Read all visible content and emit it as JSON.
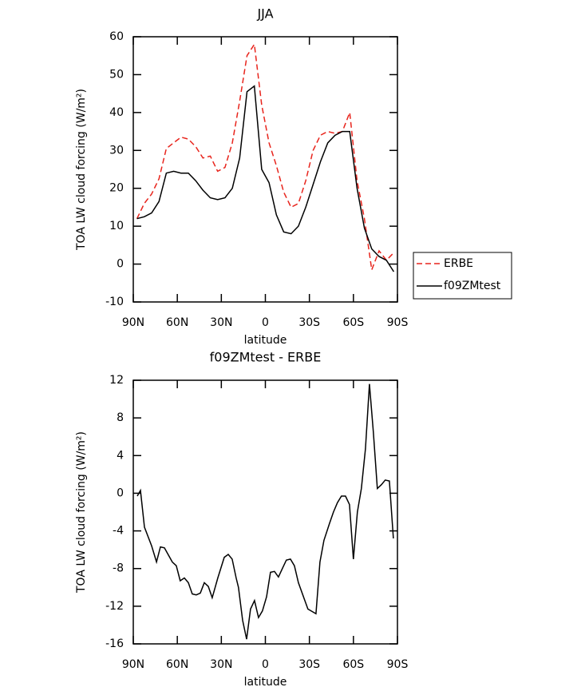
{
  "chart_data": [
    {
      "type": "line",
      "title": "JJA",
      "x_label": "latitude",
      "y_label": "TOA LW cloud forcing (W/m²)",
      "x": [
        87.5,
        82.5,
        77.5,
        72.5,
        67.5,
        62.5,
        57.5,
        52.5,
        47.5,
        42.5,
        37.5,
        32.5,
        27.5,
        22.5,
        17.5,
        12.5,
        7.5,
        2.5,
        -2.5,
        -7.5,
        -12.5,
        -17.5,
        -22.5,
        -27.5,
        -32.5,
        -37.5,
        -42.5,
        -47.5,
        -52.5,
        -57.5,
        -62.5,
        -67.5,
        -72.5,
        -77.5,
        -82.5,
        -87.5
      ],
      "series": [
        {
          "name": "ERBE",
          "color": "#e8241c",
          "linestyle": "dashed",
          "values": [
            12,
            16,
            18.5,
            22.5,
            30.5,
            32,
            33.5,
            33,
            31,
            28,
            28.5,
            24.5,
            25.5,
            32,
            43,
            55,
            58,
            42,
            32,
            26,
            19,
            15,
            16,
            22,
            30,
            34,
            35,
            34.5,
            35,
            40,
            22,
            12,
            -1.5,
            3.5,
            1,
            3
          ]
        },
        {
          "name": "f09ZMtest",
          "color": "#000000",
          "linestyle": "solid",
          "values": [
            12,
            12.5,
            13.5,
            16.5,
            24,
            24.5,
            24,
            24,
            22,
            19.5,
            17.5,
            17,
            17.5,
            20,
            28,
            45.5,
            47,
            25,
            21.5,
            13,
            8.5,
            8,
            10,
            15,
            21,
            27,
            32,
            34,
            35,
            35,
            20,
            9.5,
            4,
            2,
            1,
            -2
          ]
        }
      ],
      "xlim": [
        90,
        -90
      ],
      "xticks": [
        {
          "value": 90,
          "label": "90N"
        },
        {
          "value": 60,
          "label": "60N"
        },
        {
          "value": 30,
          "label": "30N"
        },
        0,
        {
          "value": -30,
          "label": "30S"
        },
        {
          "value": -60,
          "label": "60S"
        },
        {
          "value": -90,
          "label": "90S"
        }
      ],
      "ylim": [
        -10,
        60
      ],
      "yticks": [
        -10,
        0,
        10,
        20,
        30,
        40,
        50,
        60
      ],
      "legend": "right"
    },
    {
      "type": "line",
      "title": "f09ZMtest - ERBE",
      "x_label": "latitude",
      "y_label": "TOA LW cloud forcing (W/m²)",
      "x": [
        87.3,
        85.1,
        82.4,
        77.5,
        74.2,
        71.5,
        68.8,
        63.4,
        60.7,
        58,
        55.2,
        52.5,
        49.8,
        47.1,
        44.3,
        41.6,
        38.9,
        36.2,
        32.4,
        28,
        25.3,
        22.6,
        19.9,
        18.3,
        15.5,
        12.8,
        10.1,
        7.4,
        4.7,
        2,
        -0.8,
        -3.5,
        -6.2,
        -8.9,
        -11.6,
        -14.3,
        -17.1,
        -19.8,
        -22.5,
        -29,
        -34.5,
        -37.2,
        -39.9,
        -43.7,
        -46.4,
        -49.1,
        -51.8,
        -54.6,
        -57.3,
        -60,
        -62.7,
        -65.4,
        -68.2,
        -70.9,
        -73.6,
        -76.3,
        -79,
        -81.7,
        -84.5,
        -87.2
      ],
      "values": [
        -0.3,
        0.3,
        -3.6,
        -5.6,
        -7.3,
        -5.7,
        -5.8,
        -7.3,
        -7.7,
        -9.3,
        -9,
        -9.5,
        -10.7,
        -10.8,
        -10.6,
        -9.5,
        -9.9,
        -11.1,
        -9,
        -6.8,
        -6.5,
        -7,
        -9,
        -10,
        -13.5,
        -15.5,
        -12.3,
        -11.4,
        -13.2,
        -12.5,
        -11,
        -8.4,
        -8.3,
        -8.9,
        -8,
        -7.1,
        -7,
        -7.7,
        -9.5,
        -12.3,
        -12.8,
        -7.3,
        -5,
        -3.2,
        -2,
        -1,
        -0.3,
        -0.3,
        -1.2,
        -7,
        -2,
        0.5,
        4.7,
        11.6,
        6.5,
        0.5,
        0.9,
        1.4,
        1.3,
        -4.8
      ],
      "color": "#000000",
      "xlim": [
        90,
        -90
      ],
      "xticks": [
        {
          "value": 90,
          "label": "90N"
        },
        {
          "value": 60,
          "label": "60N"
        },
        {
          "value": 30,
          "label": "30N"
        },
        0,
        {
          "value": -30,
          "label": "30S"
        },
        {
          "value": -60,
          "label": "60S"
        },
        {
          "value": -90,
          "label": "90S"
        }
      ],
      "ylim": [
        -16,
        12
      ],
      "yticks": [
        -16,
        -12,
        -8,
        -4,
        0,
        4,
        8,
        12
      ]
    }
  ]
}
